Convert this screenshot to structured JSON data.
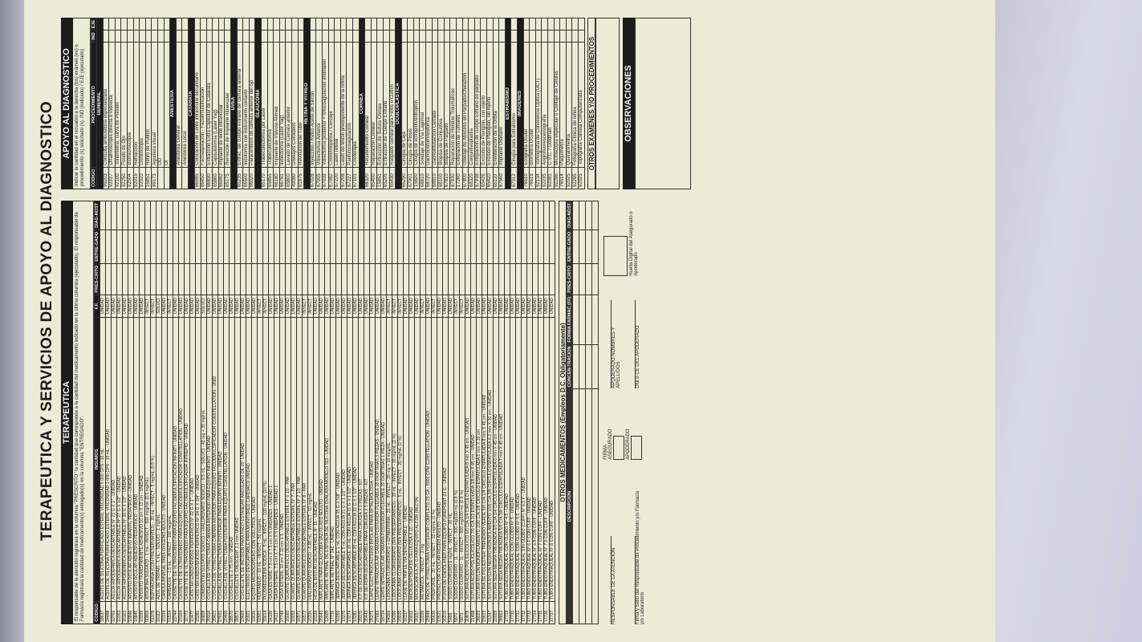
{
  "form": {
    "title": "TERAPEUTICA Y SERVICIOS DE APOYO AL DIAGNOSTICO",
    "terapeutica_header": "TERAPEUTICA",
    "terapeutica_note": "El responsable de la atención registrará en la columna \"PRESCRITO\" la cantidad que corresponde a la cantidad del medicamento indicado en la última columna (ejecutado). El responsable de Farmacia registrará la cantidad de medicamento(s) entregado(s) en la columna \"ENTREGADO\".",
    "insumos_header": "INSUMOS",
    "insumos_cols": [
      "CÓDIGO",
      "INSUMOS",
      "F.F.",
      "PRES-CRITO",
      "ENTRE-GADO",
      "DIAG-NOST"
    ],
    "otros_med_header": "OTROS MEDICAMENTOS (Empleos D.C. Obligatoriamente)",
    "otros_med_cols": [
      "DESCRIPCION",
      "CONCEN-TRACIÓN",
      "FORMA FARMAC (FF)",
      "PRES-CRITO",
      "ENTRE-GADO",
      "DIAG-NOST"
    ],
    "apoyo_header": "APOYO AL DIAGNOSTICO",
    "apoyo_note": "Indicar la cantidad en el recuadro a la derecha (los) exámen (es) o procedimiento (s) solicitado (s). IND (indicado) / EJE (ejecutado)",
    "proc_cols": [
      "CÓDIGO",
      "PROCEDIMIENTO",
      "IND",
      "EJE"
    ],
    "otros_examenes": "OTROS EXAMENES Y/O PROCEDIMIENTOS",
    "observaciones": "OBSERVACIONES",
    "firma": "FIRMA",
    "asegurado": "ASEGURADO",
    "apoderado": "APODERADO",
    "apoderado_nombres": "APODERADO NOMBRES Y APELLIDOS",
    "dni_apoderado": "DNI o CE DEL APODERADO",
    "responsable": "RESPONSABLE DE LA ATENCIÓN",
    "firma_sello": "Firma y Sello del Responsable de Procedimiento y/o Farmacia y/o Laboratorio",
    "huella": "Huella Digital del Asegurado o Apoderado"
  },
  "insumos": [
    {
      "code": "18637",
      "name": "ACEITE DE SILICONA PURIFICADO ESTERIL VISCOSIDAD 5 000 CPS - 10 mL",
      "ff": "UNIDAD"
    },
    {
      "code": "24488",
      "name": "ACEITE DE SILICONA PURIFICADO ESTERIL VISCOSIDAD 1 000 CPS - 10 mL - UNIDAD",
      "ff": "UNIDAD"
    },
    {
      "code": "10766",
      "name": "AGUJA HIPODERMICA DESCARTABLE N° 23 G X 1\" - UNIDAD",
      "ff": "UNIDAD"
    },
    {
      "code": "10163",
      "name": "AGUJA HIPODERMICA DESCARTABLE N° 27 G X 1/2\" - UNIDAD",
      "ff": "UNIDAD"
    },
    {
      "code": "15163",
      "name": "AGUJA HIPODERMICA DESCARTABLE N° 30 G X 1/2\" - UNIDAD",
      "ff": "UNIDAD"
    },
    {
      "code": "16846",
      "name": "APOSITO OCULAR ADHESIVO INFANTIL PEDIATRICO - UNIDAD",
      "ff": "UNIDAD"
    },
    {
      "code": "16845",
      "name": "APOSITO OCULAR ADHESIVO PEDIATRICO - UNIDAD",
      "ff": "UNIDAD"
    },
    {
      "code": "10299",
      "name": "APOSITO TRANSPARENTE ADHESIVO 10 cm X 12 cm - UNIDAD",
      "ff": "UNIDAD"
    },
    {
      "code": "00909",
      "name": "ATROPINA SULFATO - 1 mL - INYECT - 500 mcg/mL (0.5 mg/mL)",
      "ff": "INYECT"
    },
    {
      "code": "01378",
      "name": "BUPIVACAINA (CON PRESERVANTES) - 20 mL - INYECT - 5 mg/mL (0.5 %)",
      "ff": "INYECT"
    },
    {
      "code": "16112",
      "name": "AZUL DE TRIPAN - 1 mL - SOLUCI - 1 mg/mL",
      "ff": "SOLUCI"
    },
    {
      "code": "15334",
      "name": "CANULA BINASAL PARA OXIGENO ADULTO - UNIDAD",
      "ff": "UNIDAD"
    },
    {
      "code": "01524",
      "name": "CARBACOL - 1.5 mL - INYECT - 100 mcg/mL",
      "ff": "INYECT"
    },
    {
      "code": "23744",
      "name": "CASSETTE DE ULTRASONIDO PARA EQUIPO FACOEMULSIFICACION INFINITI - UNIDAD",
      "ff": "UNIDAD"
    },
    {
      "code": "23164",
      "name": "CASSETTE DE ULTRASONIDO PARA EQUIPO FACOEMULSIFICADOR CONSTELLATION - UNIDAD",
      "ff": "UNIDAD"
    },
    {
      "code": "32773",
      "name": "CASSETTE DE ULTRASONIDO PARA EQUIPO FACOEMULSIFICADOR INTREPID - UNIDAD",
      "ff": "UNIDAD"
    },
    {
      "code": "10477",
      "name": "CATETER ENDOVENOSO PERIFERICO N° 22 G X 1\" - UNIDAD",
      "ff": "UNIDAD"
    },
    {
      "code": "15281",
      "name": "CATETER ENDOVENOSO PERIFERICO N° 24 G X 3/4\" - UNIDAD",
      "ff": "UNIDAD"
    },
    {
      "code": "26808",
      "name": "CONDROITIN SULFATO SODICO + HIALURONATO SODICO - 0.5 mL - SOLUCI - 40 mg + 30 mg/mL",
      "ff": "SOLUCI"
    },
    {
      "code": "29316",
      "name": "CUCHILLA DE VITRECTOMIA CAMARA ANTERIOR PARA EQUIPO INFINITI - UNIDAD",
      "ff": "UNIDAD"
    },
    {
      "code": "29423",
      "name": "CUCHILLA DE VITRECTOMIA CAMARA ANTERIOR PARA EQUIPO FACOEMULSIFICADOR CONSTELLATION - UNID",
      "ff": "UNIDAD"
    },
    {
      "code": "27601",
      "name": "CUCHILLA DE VITRECTOMIA POSTERIOR PARA EQUIPO INFINITI - UNIDAD",
      "ff": "UNIDAD"
    },
    {
      "code": "29400",
      "name": "CUCHILLA DE VITRECTOMIA POSTERIOR PARA EQUIPO CONSTELLATION - UNIDAD",
      "ff": "UNIDAD"
    },
    {
      "code": "28570",
      "name": "CUCHILLETE 2.75 mm - UNIDAD",
      "ff": "UNIDAD"
    },
    {
      "code": "28571",
      "name": "CUCHILLETE CRESCENT 2.1 mm UNIDAD",
      "ff": "UNIDAD"
    },
    {
      "code": "23669",
      "name": "CUCHILLETE DE INCISION PARA FACO ESTANDAR ANGULADO DE 15° UNIDAD",
      "ff": "UNIDAD"
    },
    {
      "code": "15921",
      "name": "ELECTRODO DESCARTABLE PARA MONITOREO CARDIACO UNIDAD",
      "ff": "UNIDAD"
    },
    {
      "code": "19636",
      "name": "EQUIPO MICROGOTERO CON VOLUTROL - UNIDAD",
      "ff": "UNIDAD"
    },
    {
      "code": "02601",
      "name": "FENTANILO - 10 mL - INYECT - 50 mcg/mL",
      "ff": "INYECT"
    },
    {
      "code": "33614",
      "name": "FLUORESCEINA SODICA - 5 mL - INYECT - 100 mg/mL (10 %)",
      "ff": "INYECT"
    },
    {
      "code": "24100",
      "name": "GASA ESTERIL 7.5 cm X 7.5 cm X 5 UNIDADES - UNIDAD 1",
      "ff": "UNIDAD"
    },
    {
      "code": "24137",
      "name": "GASA ESTERIL 7.5 cm X 7.5 cm X 5 UNIDADES - UNIDAD 1",
      "ff": "UNIDAD"
    },
    {
      "code": "27749",
      "name": "GASA ESTERIL 10 cm X 10 cm X 5 - UNIDAD",
      "ff": "UNIDAD"
    },
    {
      "code": "16060",
      "name": "GUANTE QUIRURGICO DESCARTABLE ESTERIL N° 6 1/2 - PAR",
      "ff": "UNIDAD"
    },
    {
      "code": "16056",
      "name": "GUANTE QUIRURGICO DESCARTABLE ESTERIL N° 7 - PAR",
      "ff": "UNIDAD"
    },
    {
      "code": "16571",
      "name": "GUANTE QUIRURGICO DESCARTABLE ESTERIL N° 7 1/2 - PAR",
      "ff": "UNIDAD"
    },
    {
      "code": "16572",
      "name": "GUANTE QUIRURGICO DESCARTABLE ESTERIL N° 8 - PAR",
      "ff": "INYECT"
    },
    {
      "code": "15336",
      "name": "HIALURONATO SODICO - 0.85 mL - INYECT - 10 mg/mL",
      "ff": "INYECT"
    },
    {
      "code": "15339",
      "name": "HOJA DE BISTURI DESCARTABLE N° 15 - UNIDAD",
      "ff": "UNIDAD"
    },
    {
      "code": "25643",
      "name": "IMPLANTE PARA GLAUCOMA VALVULADO ADULTO - UNIDAD",
      "ff": "UNIDAD"
    },
    {
      "code": "12605",
      "name": "IMPLANTE RETINAL DE ESPONJA DE SILICONA OVALADA MODELO 503 - UNIDAD",
      "ff": "UNIDAD"
    },
    {
      "code": "17736",
      "name": "IMPLANTE RETINAL N° 240 - UNIDAD",
      "ff": "UNIDAD"
    },
    {
      "code": "16056",
      "name": "JERINGA DESCARTABLE 1 mL CON AGUJA 25 G X 5/8\" - UNIDAD",
      "ff": "UNIDAD"
    },
    {
      "code": "13270",
      "name": "JERINGA DESCARTABLE 5 mL CON AGUJA 21 G X 1 1/2\" - UNIDAD",
      "ff": "UNIDAD"
    },
    {
      "code": "13274",
      "name": "JERINGA DESCARTABLE 10 mL CON AGUJA 21 G X 1 1/2\" - UNIDAD",
      "ff": "UNIDAD"
    },
    {
      "code": "13281",
      "name": "JERINGA DESCARTABLE 20 mL CON AGUJA 21 G X 1 1/2\" - UNIDAD",
      "ff": "UNIDAD"
    },
    {
      "code": "29370",
      "name": "KIT DE ROPA DESCARTABLE PARA CIRUGIA X 6 PIEZAS - KIT",
      "ff": "UNIDAD"
    },
    {
      "code": "26443",
      "name": "KIT DE ROPA DESCARTABLE PARA CIRUGIA X 5 PIEZAS - KIT",
      "ff": "UNIDAD"
    },
    {
      "code": "25271",
      "name": "LAPIZ ELECTROCAUTERIO BIPOLAR PARA OFTALMOLOGIA - UNIDAD",
      "ff": "UNIDAD"
    },
    {
      "code": "27683",
      "name": "LENTE INTRAOCULAR CAMARA POSTERIOR PLEGABLE 20 DIOPTRIAS 3 PIEZAS - UNIDAD",
      "ff": "UNIDAD"
    },
    {
      "code": "18734",
      "name": "LENTE INTRAOCULAR CAMARA POSTERIOR PLEGABLE 20 DIOPTRIAS 1 PIEZA - UNIDAD",
      "ff": "UNIDAD"
    },
    {
      "code": "04366",
      "name": "LIDOCAINA CLORHIDRATO + EPINEFRINA - 20 mL - INYECT - 20 mg + 10 mcg/mL",
      "ff": "INYECT"
    },
    {
      "code": "04390",
      "name": "LIDOCAINA CLORHIDRATO (SIN PRESERVANTES) - 20 mL - INYECT - 20 mg/mL (2 %)",
      "ff": "INYECT"
    },
    {
      "code": "29020",
      "name": "LIDOCAINA CLORHIDRATO (SIN PRESERVANTES) - 5 mL - INYECT - 20 mg/mL (2 %)",
      "ff": "INYECT"
    },
    {
      "code": "16337",
      "name": "LLAVE DE TRIPLE VIA DESCARTABLE - UNIDAD",
      "ff": "UNIDAD"
    },
    {
      "code": "20032",
      "name": "MICROESPONJA DE CELULOSA X 10 - UNIDAD",
      "ff": "UNIDAD"
    },
    {
      "code": "26657",
      "name": "MICROCANULA 25 G PARA EQUIPO ALCON (RECTA)",
      "ff": "UNIDAD"
    },
    {
      "code": "22039",
      "name": "METAMIZOL - INYECT - 2 mg",
      "ff": "INYECT"
    },
    {
      "code": "25848",
      "name": "PACK DE VITRECTOMIA POSTERIOR COMPLETO 23 GA - 5000 CPM CONSTELLATION - UNIDAD",
      "ff": "UNIDAD"
    },
    {
      "code": "05630",
      "name": "PROPOFOL - 20 mL - INYECT - 10 mg/mL (1 %)",
      "ff": "INYECT"
    },
    {
      "code": "13521",
      "name": "PROTECTOR OCULAR RIGIDO ADULTO - UNIDAD",
      "ff": "UNIDAD"
    },
    {
      "code": "20210",
      "name": "PUNTA DE ENDOLASER PARA EQUIPO PUREPOINT 23 G - UNIDAD",
      "ff": "UNIDAD"
    },
    {
      "code": "5489",
      "name": "SODIO CLORURO 9 mg/mL - INYECT - 20 mL",
      "ff": "UNIDAD"
    },
    {
      "code": "5872",
      "name": "SODIO CLORURO - 1L - INYECT - 900 mg/100 mL (0.9 %)",
      "ff": "INYECT"
    },
    {
      "code": "5873",
      "name": "SODIO CLORURO - 1L - INYECT - 900 mg/100 mL (0.9 %)",
      "ff": "INYECT"
    },
    {
      "code": "20878",
      "name": "SUTURA ACIDO POLIGLICOLICO 6/0 C/A 1/4 CIRCULO ESPATULADA 8 mm X 45 cm - UNIDAD",
      "ff": "UNIDAD"
    },
    {
      "code": "21498",
      "name": "SUTURA ACIDO POLIGLICOLICO 7/0 C/A 1/2 ESPATULADA 3/8 mm X 45 cm - UNIDAD",
      "ff": "UNIDAD"
    },
    {
      "code": "28023",
      "name": "SUTURA NYLON MONOFILAMENTO 10/0 C/A 3/8 CIRCULO ESPATULADA 6 mm X 30 cm",
      "ff": "UNIDAD"
    },
    {
      "code": "23623",
      "name": "SUTURA DE POLIESTER TRENZADO VERDE 5/0 C/A 1/4 CIRCULO ESPATULADA 8 mm X 45 cm - UNIDAD",
      "ff": "UNIDAD"
    },
    {
      "code": "21347",
      "name": "SUTURA NYLON NEGRO MONOFILAMENTO 10/0 C/A 3/8 CIRCULO ESPATULADA 6.2 mm X 30 cm - UNIDAD",
      "ff": "UNIDAD"
    },
    {
      "code": "22059",
      "name": "SUTURA SEDA NEGRA TRENZADA 6/0 C/A 1/4 CIRCULO ESPATULADA 6 mm X 45 cm - UNIDAD",
      "ff": "UNIDAD"
    },
    {
      "code": "28863",
      "name": "SUTURA SEDA NEGRA TRENZADA 5/0 C/A 3/8 CIRCULO ESPATULADA 7 mm X 45 cm - UNIDAD",
      "ff": "UNIDAD"
    },
    {
      "code": "17729",
      "name": "TUBO ENDOTRAQUEAL CON GLOBO N° 4.5 - UNIDAD",
      "ff": "UNIDAD"
    },
    {
      "code": "17730",
      "name": "TUBO ENDOTRAQUEAL CON GLOBO N° 5 - UNIDAD",
      "ff": "UNIDAD"
    },
    {
      "code": "17731",
      "name": "TUBO ENDOTRAQUEAL CON GLOBO N° 5.5 - UNIDAD",
      "ff": "UNIDAD"
    },
    {
      "code": "17732",
      "name": "TUBO ENDOTRAQUEAL SIN GLOBO (CUFF) N° 6.5 F - UNIDAD",
      "ff": "UNIDAD"
    },
    {
      "code": "17733",
      "name": "TUBO ENDOTRAQUEAL N° 6 F CON CUFF - UNIDAD",
      "ff": "UNIDAD"
    },
    {
      "code": "17734",
      "name": "TUBO ENDOTRAQUEAL N° 6.5 CON CUFF - UNIDAD",
      "ff": "UNIDAD"
    },
    {
      "code": "17735",
      "name": "TUBO ENDOTRAQUEAL N° 7 CON CUFF - UNIDAD",
      "ff": "UNIDAD"
    },
    {
      "code": "17736",
      "name": "TUBO ENDOTRAQUEAL N° 7.5 CON CUFF - UNIDAD",
      "ff": "UNIDAD"
    },
    {
      "code": "17737",
      "name": "TUBO ENDOTRAQUEAL N° 8 CON CUFF - UNIDAD",
      "ff": "UNIDAD"
    }
  ],
  "procedimientos": [
    {
      "section": "GENERAL",
      "items": [
        {
          "code": "99203",
          "name": "Consulta ambulatoria especializada"
        },
        {
          "code": "92227",
          "name": "Oftalmoscopia directa e indirecta"
        },
        {
          "code": "92100",
          "name": "Tonometría, curva de Presión"
        },
        {
          "code": "92250",
          "name": "Fondo de Ojo"
        },
        {
          "code": "92504",
          "name": "Biomicroscopia"
        },
        {
          "code": "92015",
          "name": "Refracción"
        },
        {
          "code": "92020",
          "name": "Gonioscopia"
        },
        {
          "code": "15851",
          "name": "Retiro de Puntos"
        },
        {
          "code": "99173",
          "name": "Agudeza visual"
        },
        {
          "code": "",
          "name": "OD"
        },
        {
          "code": "",
          "name": "OI"
        }
      ]
    },
    {
      "section": "ANESTESIA",
      "items": [
        {
          "code": "",
          "name": "Anestesia General"
        },
        {
          "code": "",
          "name": "Anestesia Local"
        }
      ]
    },
    {
      "section": "CATARATA",
      "items": [
        {
          "code": "66985",
          "name": "Colocación de Lente intraocular secundario"
        },
        {
          "code": "66850",
          "name": "Facoaspiración - Facoemulsificación"
        },
        {
          "code": "66830",
          "name": "Extracción Extra Capsular de Catarata"
        },
        {
          "code": "65860",
          "name": "Capsulotomía (Láser Yag)"
        },
        {
          "code": "66982",
          "name": "Implante de lente intraocular"
        },
        {
          "code": "65175",
          "name": "Remoción de Implante Intraocular"
        }
      ]
    },
    {
      "section": "UVEA",
      "items": [
        {
          "code": "65235",
          "name": "Extrac. de cuerpo extraño de cámara anterior"
        },
        {
          "code": "66500",
          "name": "Iridotomía con instrumento cortante"
        },
        {
          "code": "66020",
          "name": "Paracentesis de cámara anterior del ojo"
        }
      ]
    },
    {
      "section": "GLAUCOMA",
      "items": [
        {
          "code": "65170",
          "name": "Trabeculectomía por Laser"
        },
        {
          "code": "65855",
          "name": "Trabeculectomía"
        },
        {
          "code": "66180",
          "name": "Implante de Válvula Ahmed"
        },
        {
          "code": "66761",
          "name": "Iridectomía (Láser Yag)"
        },
        {
          "code": "65800",
          "name": "Lavado de Cámara anterior"
        },
        {
          "code": "49080",
          "name": "Drenajes Coroideos"
        },
        {
          "code": "61975",
          "name": "Revolución de Tubo"
        }
      ]
    },
    {
      "section": "RETINA Y VITREO",
      "items": [
        {
          "code": "67028",
          "name": "Inyección / Retiro Aceite de Silicon"
        },
        {
          "code": "67005",
          "name": "Vitrectomía Anterior"
        },
        {
          "code": "67039",
          "name": "Vitrectomía posterior + fotocoagulación endolaser"
        },
        {
          "code": "67082",
          "name": "Crioretinopexia / Cerclaje"
        },
        {
          "code": "67220",
          "name": "Laser retinal"
        },
        {
          "code": "67208",
          "name": "Laser en lesión predisponente de la retina"
        },
        {
          "code": "67227",
          "name": "Panfotocoagulación"
        },
        {
          "code": "67101",
          "name": "Crioterapia"
        }
      ]
    },
    {
      "section": "CORNEA",
      "items": [
        {
          "code": "68320",
          "name": "Recubrimiento Corneal"
        },
        {
          "code": "65400",
          "name": "Reparación Corneal"
        },
        {
          "code": "15851",
          "name": "Extracción de Sutura Córnea"
        },
        {
          "code": "65205",
          "name": "Extracción de Cuerpo Extraño"
        },
        {
          "code": "65430",
          "name": "Raspado corneal para Frotis o Cultivo"
        }
      ]
    },
    {
      "section": "OCULOPLASTICA",
      "items": [
        {
          "code": "65290",
          "name": "Cirugía de Ceja"
        },
        {
          "code": "67901",
          "name": "Cirugía de Ptosis"
        },
        {
          "code": "15820",
          "name": "Cirugía de ectropión/entropión"
        },
        {
          "code": "68810",
          "name": "Sondaje de Vía Lagrimal"
        },
        {
          "code": "68720",
          "name": "Dacriocistorrinostomía"
        },
        {
          "code": "68810",
          "name": "Dacriointubación Cerrada"
        },
        {
          "code": "68100",
          "name": "Biopsia de Conjuntiva"
        },
        {
          "code": "67810",
          "name": "Biopsia de Párpado"
        },
        {
          "code": "67930",
          "name": "Reparación de Heridas Traumáticas"
        },
        {
          "code": "17260",
          "name": "Extirpación de Tumores"
        },
        {
          "code": "67800",
          "name": "Drenaje de Absceso en Párpado/Chalazión"
        },
        {
          "code": "68320",
          "name": "Conjuntivoplastia"
        },
        {
          "code": "67938",
          "name": "Extirpación de cuerpo Extraño en párpado"
        },
        {
          "code": "65426",
          "name": "Excisión de Pterigión, con injerto"
        },
        {
          "code": "65420",
          "name": "Excisión de Pterigión, sin injerto"
        },
        {
          "code": "65110",
          "name": "Exenteración de la Órbita"
        },
        {
          "code": "67560",
          "name": "Implante Orbitario"
        }
      ]
    },
    {
      "section": "ESTRABISMO",
      "items": [
        {
          "code": "67312",
          "name": "Cirugía para Estrabismo"
        }
      ]
    },
    {
      "section": "IMAGENES",
      "items": [
        {
          "code": "76510",
          "name": "Ecografía Ocular"
        },
        {
          "code": "76519",
          "name": "Biometría Ocular"
        },
        {
          "code": "92134",
          "name": "Tomografía de Coherencia Óptica (OCT)"
        },
        {
          "code": "92235",
          "name": "Angiofluoresceinografía"
        },
        {
          "code": "92081",
          "name": "C.V.C. / Goldman"
        },
        {
          "code": "92286",
          "name": "Microscopía especular o Contaje de Células"
        },
        {
          "code": "76514",
          "name": "Paquimetría"
        },
        {
          "code": "92025",
          "name": "Queratometría"
        },
        {
          "code": "92285",
          "name": "Fotografía Clínica de retina"
        },
        {
          "code": "92025",
          "name": "Topografía Corneal Computarizada"
        }
      ]
    }
  ]
}
